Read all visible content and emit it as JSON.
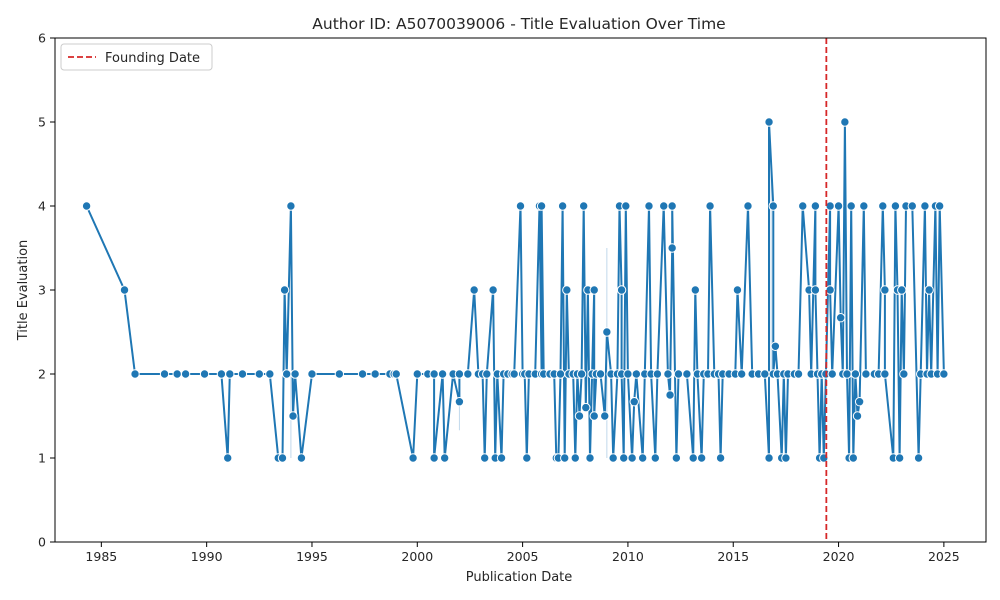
{
  "chart_data": {
    "type": "line",
    "title": "Author ID: A5070039006 - Title Evaluation Over Time",
    "xlabel": "Publication Date",
    "ylabel": "Title Evaluation",
    "xlim": [
      1982.8,
      2027.0
    ],
    "ylim": [
      0,
      6
    ],
    "xticks": [
      1985,
      1990,
      1995,
      2000,
      2005,
      2010,
      2015,
      2020,
      2025
    ],
    "yticks": [
      0,
      1,
      2,
      3,
      4,
      5,
      6
    ],
    "grid": false,
    "legend": {
      "position": "top-left",
      "entries": [
        "Founding Date"
      ]
    },
    "colors": {
      "line": "#1f77b4",
      "founding": "#d62728",
      "band": "#a6c8e4"
    },
    "founding_date": 2019.42,
    "series": [
      {
        "points": [
          [
            1984.3,
            4
          ],
          [
            1986.1,
            3
          ],
          [
            1986.6,
            2
          ],
          [
            1988.0,
            2
          ],
          [
            1988.6,
            2
          ],
          [
            1989.0,
            2
          ],
          [
            1989.9,
            2
          ],
          [
            1990.7,
            2
          ],
          [
            1991.0,
            1
          ],
          [
            1991.1,
            2
          ],
          [
            1991.7,
            2
          ],
          [
            1992.5,
            2
          ],
          [
            1993.0,
            2
          ],
          [
            1993.4,
            1
          ],
          [
            1993.6,
            1
          ],
          [
            1993.7,
            3
          ],
          [
            1993.8,
            2
          ],
          [
            1994.0,
            4
          ],
          [
            1994.1,
            1.5
          ],
          [
            1994.2,
            2
          ],
          [
            1994.5,
            1
          ],
          [
            1995.0,
            2
          ],
          [
            1996.3,
            2
          ],
          [
            1997.4,
            2
          ],
          [
            1998.0,
            2
          ],
          [
            1998.7,
            2
          ],
          [
            1998.9,
            2
          ],
          [
            1999.0,
            2
          ],
          [
            1999.8,
            1
          ],
          [
            2000.0,
            2
          ],
          [
            2000.5,
            2
          ],
          [
            2000.8,
            2
          ],
          [
            2000.8,
            1
          ],
          [
            2001.2,
            2
          ],
          [
            2001.3,
            1
          ],
          [
            2001.7,
            2
          ],
          [
            2002.0,
            1.67
          ],
          [
            2002.0,
            2
          ],
          [
            2002.4,
            2
          ],
          [
            2002.7,
            3
          ],
          [
            2002.9,
            2
          ],
          [
            2003.1,
            2
          ],
          [
            2003.2,
            1
          ],
          [
            2003.3,
            2
          ],
          [
            2003.6,
            3
          ],
          [
            2003.7,
            1
          ],
          [
            2003.8,
            2
          ],
          [
            2004.0,
            1
          ],
          [
            2004.1,
            2
          ],
          [
            2004.3,
            2
          ],
          [
            2004.5,
            2
          ],
          [
            2004.6,
            2
          ],
          [
            2004.9,
            4
          ],
          [
            2005.0,
            2
          ],
          [
            2005.1,
            2
          ],
          [
            2005.2,
            1
          ],
          [
            2005.3,
            2
          ],
          [
            2005.6,
            2
          ],
          [
            2005.8,
            4
          ],
          [
            2005.9,
            2
          ],
          [
            2005.9,
            4
          ],
          [
            2006.0,
            2
          ],
          [
            2006.3,
            2
          ],
          [
            2006.5,
            2
          ],
          [
            2006.6,
            1
          ],
          [
            2006.7,
            1
          ],
          [
            2006.8,
            2
          ],
          [
            2006.9,
            4
          ],
          [
            2007.0,
            1
          ],
          [
            2007.1,
            3
          ],
          [
            2007.2,
            2
          ],
          [
            2007.4,
            2
          ],
          [
            2007.5,
            1
          ],
          [
            2007.6,
            2
          ],
          [
            2007.7,
            1.5
          ],
          [
            2007.8,
            2
          ],
          [
            2007.9,
            4
          ],
          [
            2008.0,
            1.6
          ],
          [
            2008.1,
            3
          ],
          [
            2008.2,
            1
          ],
          [
            2008.3,
            2
          ],
          [
            2008.4,
            3
          ],
          [
            2008.4,
            1.5
          ],
          [
            2008.5,
            2
          ],
          [
            2008.7,
            2
          ],
          [
            2008.9,
            1.5
          ],
          [
            2009.0,
            2.5
          ],
          [
            2009.2,
            2
          ],
          [
            2009.3,
            1
          ],
          [
            2009.5,
            2
          ],
          [
            2009.6,
            4
          ],
          [
            2009.7,
            3
          ],
          [
            2009.7,
            2
          ],
          [
            2009.8,
            1
          ],
          [
            2009.9,
            4
          ],
          [
            2010.0,
            2
          ],
          [
            2010.2,
            1
          ],
          [
            2010.3,
            1.67
          ],
          [
            2010.4,
            2
          ],
          [
            2010.7,
            1
          ],
          [
            2010.8,
            2
          ],
          [
            2011.0,
            4
          ],
          [
            2011.1,
            2
          ],
          [
            2011.3,
            1
          ],
          [
            2011.4,
            2
          ],
          [
            2011.7,
            4
          ],
          [
            2011.9,
            2
          ],
          [
            2012.0,
            1.75
          ],
          [
            2012.1,
            3.5
          ],
          [
            2012.1,
            4
          ],
          [
            2012.3,
            1
          ],
          [
            2012.4,
            2
          ],
          [
            2012.8,
            2
          ],
          [
            2013.1,
            1
          ],
          [
            2013.2,
            3
          ],
          [
            2013.3,
            2
          ],
          [
            2013.5,
            1
          ],
          [
            2013.6,
            2
          ],
          [
            2013.8,
            2
          ],
          [
            2013.9,
            4
          ],
          [
            2014.1,
            2
          ],
          [
            2014.3,
            2
          ],
          [
            2014.4,
            1
          ],
          [
            2014.5,
            2
          ],
          [
            2014.8,
            2
          ],
          [
            2015.1,
            2
          ],
          [
            2015.2,
            3
          ],
          [
            2015.4,
            2
          ],
          [
            2015.7,
            4
          ],
          [
            2015.9,
            2
          ],
          [
            2016.2,
            2
          ],
          [
            2016.5,
            2
          ],
          [
            2016.7,
            1
          ],
          [
            2016.7,
            5
          ],
          [
            2016.9,
            4
          ],
          [
            2016.9,
            2
          ],
          [
            2017.0,
            2.33
          ],
          [
            2017.1,
            2
          ],
          [
            2017.3,
            1
          ],
          [
            2017.4,
            2
          ],
          [
            2017.5,
            1
          ],
          [
            2017.6,
            2
          ],
          [
            2017.9,
            2
          ],
          [
            2018.1,
            2
          ],
          [
            2018.3,
            4
          ],
          [
            2018.6,
            3
          ],
          [
            2018.7,
            2
          ],
          [
            2018.9,
            4
          ],
          [
            2018.9,
            3
          ],
          [
            2019.0,
            2
          ],
          [
            2019.1,
            1
          ],
          [
            2019.2,
            2
          ],
          [
            2019.3,
            1
          ],
          [
            2019.4,
            2
          ],
          [
            2019.6,
            4
          ],
          [
            2019.6,
            3
          ],
          [
            2019.7,
            2
          ],
          [
            2020.0,
            4
          ],
          [
            2020.1,
            2.67
          ],
          [
            2020.2,
            2
          ],
          [
            2020.3,
            5
          ],
          [
            2020.4,
            2
          ],
          [
            2020.5,
            1
          ],
          [
            2020.6,
            4
          ],
          [
            2020.7,
            1
          ],
          [
            2020.8,
            2
          ],
          [
            2020.9,
            1.5
          ],
          [
            2021.0,
            1.67
          ],
          [
            2021.2,
            4
          ],
          [
            2021.3,
            2
          ],
          [
            2021.7,
            2
          ],
          [
            2021.9,
            2
          ],
          [
            2022.1,
            4
          ],
          [
            2022.2,
            3
          ],
          [
            2022.2,
            2
          ],
          [
            2022.6,
            1
          ],
          [
            2022.7,
            4
          ],
          [
            2022.8,
            3
          ],
          [
            2022.9,
            1
          ],
          [
            2023.0,
            3
          ],
          [
            2023.1,
            2
          ],
          [
            2023.2,
            4
          ],
          [
            2023.5,
            4
          ],
          [
            2023.8,
            1
          ],
          [
            2023.9,
            2
          ],
          [
            2024.1,
            4
          ],
          [
            2024.2,
            2
          ],
          [
            2024.3,
            3
          ],
          [
            2024.4,
            2
          ],
          [
            2024.6,
            4
          ],
          [
            2024.7,
            2
          ],
          [
            2024.8,
            4
          ],
          [
            2025.0,
            2
          ]
        ],
        "bands": [
          [
            1994.0,
            1.0,
            2.0
          ],
          [
            2002.0,
            1.33,
            2.0
          ],
          [
            2009.0,
            1.0,
            3.5
          ],
          [
            2016.8,
            2.0,
            4.5
          ]
        ]
      }
    ]
  }
}
